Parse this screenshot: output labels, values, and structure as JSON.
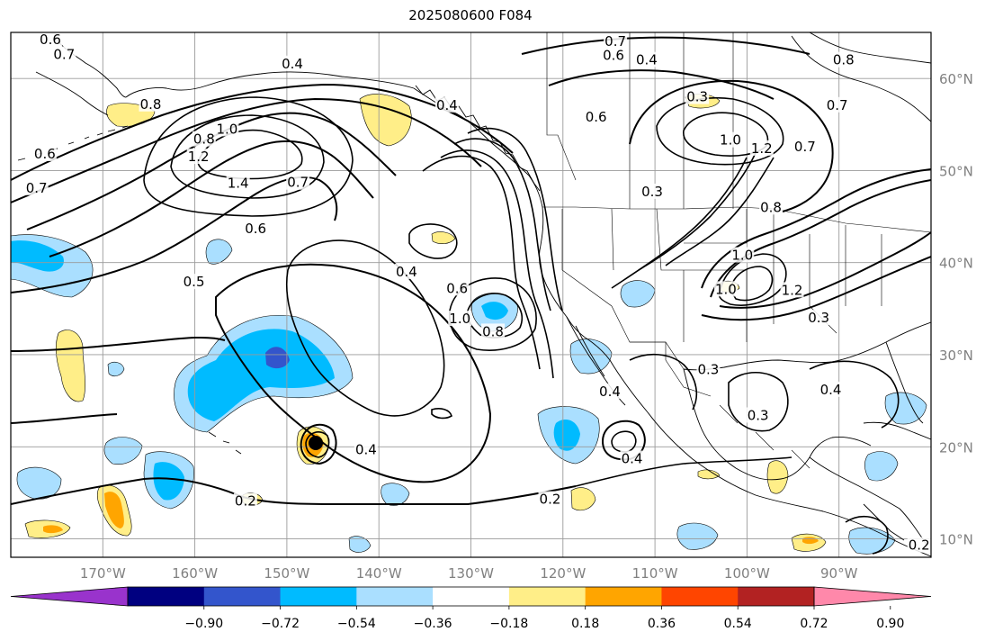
{
  "title": "2025080600 F084",
  "map": {
    "lon_range": [
      -180,
      -80
    ],
    "lat_range": [
      8,
      65
    ],
    "lon_ticks": [
      {
        "value": -170,
        "label": "170°W"
      },
      {
        "value": -160,
        "label": "160°W"
      },
      {
        "value": -150,
        "label": "150°W"
      },
      {
        "value": -140,
        "label": "140°W"
      },
      {
        "value": -130,
        "label": "130°W"
      },
      {
        "value": -120,
        "label": "120°W"
      },
      {
        "value": -110,
        "label": "110°W"
      },
      {
        "value": -100,
        "label": "100°W"
      },
      {
        "value": -90,
        "label": "90°W"
      }
    ],
    "lat_ticks": [
      {
        "value": 60,
        "label": "60°N"
      },
      {
        "value": 50,
        "label": "50°N"
      },
      {
        "value": 40,
        "label": "40°N"
      },
      {
        "value": 30,
        "label": "30°N"
      },
      {
        "value": 20,
        "label": "20°N"
      },
      {
        "value": 10,
        "label": "10°N"
      }
    ],
    "gridlines": true,
    "contour_labels": [
      {
        "text": "0.6",
        "lon": -175.7,
        "lat": 64.2
      },
      {
        "text": "0.7",
        "lon": -174.2,
        "lat": 62.6
      },
      {
        "text": "0.8",
        "lon": -164.8,
        "lat": 57.2
      },
      {
        "text": "0.8",
        "lon": -159.0,
        "lat": 53.4
      },
      {
        "text": "1.0",
        "lon": -156.5,
        "lat": 54.5
      },
      {
        "text": "1.2",
        "lon": -159.6,
        "lat": 51.5
      },
      {
        "text": "1.4",
        "lon": -155.3,
        "lat": 48.6
      },
      {
        "text": "0.7",
        "lon": -148.8,
        "lat": 48.7
      },
      {
        "text": "0.6",
        "lon": -153.4,
        "lat": 43.7
      },
      {
        "text": "0.5",
        "lon": -160.1,
        "lat": 37.9
      },
      {
        "text": "0.6",
        "lon": -176.3,
        "lat": 51.8
      },
      {
        "text": "0.7",
        "lon": -177.2,
        "lat": 48.1
      },
      {
        "text": "0.4",
        "lon": -149.4,
        "lat": 61.6
      },
      {
        "text": "0.4",
        "lon": -132.6,
        "lat": 57.1
      },
      {
        "text": "0.7",
        "lon": -114.3,
        "lat": 64.0
      },
      {
        "text": "0.6",
        "lon": -114.5,
        "lat": 62.5
      },
      {
        "text": "0.4",
        "lon": -110.9,
        "lat": 62.0
      },
      {
        "text": "0.8",
        "lon": -89.5,
        "lat": 62.0
      },
      {
        "text": "0.6",
        "lon": -116.4,
        "lat": 55.8
      },
      {
        "text": "0.3",
        "lon": -105.4,
        "lat": 58.0
      },
      {
        "text": "1.0",
        "lon": -101.8,
        "lat": 53.3
      },
      {
        "text": "1.2",
        "lon": -98.4,
        "lat": 52.4
      },
      {
        "text": "0.7",
        "lon": -93.7,
        "lat": 52.6
      },
      {
        "text": "0.7",
        "lon": -90.2,
        "lat": 57.1
      },
      {
        "text": "0.3",
        "lon": -110.3,
        "lat": 47.7
      },
      {
        "text": "0.8",
        "lon": -97.4,
        "lat": 46.0
      },
      {
        "text": "1.0",
        "lon": -100.5,
        "lat": 40.8
      },
      {
        "text": "1.0",
        "lon": -102.3,
        "lat": 37.1
      },
      {
        "text": "1.2",
        "lon": -95.1,
        "lat": 37.0
      },
      {
        "text": "0.3",
        "lon": -92.2,
        "lat": 34.0
      },
      {
        "text": "0.4",
        "lon": -137.0,
        "lat": 39.0
      },
      {
        "text": "0.6",
        "lon": -131.5,
        "lat": 37.2
      },
      {
        "text": "1.0",
        "lon": -131.2,
        "lat": 33.9
      },
      {
        "text": "0.8",
        "lon": -127.6,
        "lat": 32.5
      },
      {
        "text": "0.3",
        "lon": -104.2,
        "lat": 28.4
      },
      {
        "text": "0.3",
        "lon": -98.8,
        "lat": 23.4
      },
      {
        "text": "0.4",
        "lon": -114.9,
        "lat": 26.0
      },
      {
        "text": "0.4",
        "lon": -90.9,
        "lat": 26.2
      },
      {
        "text": "0.4",
        "lon": -141.4,
        "lat": 19.7
      },
      {
        "text": "0.4",
        "lon": -112.5,
        "lat": 18.7
      },
      {
        "text": "0.2",
        "lon": -154.5,
        "lat": 14.1
      },
      {
        "text": "0.2",
        "lon": -121.4,
        "lat": 14.3
      },
      {
        "text": "0.2",
        "lon": -81.3,
        "lat": 9.3
      }
    ]
  },
  "colorbar": {
    "colors": [
      "#9933cc",
      "#000080",
      "#3355cc",
      "#00bbff",
      "#aadfff",
      "#ffffff",
      "#ffee88",
      "#ffa500",
      "#ff4500",
      "#b22222",
      "#ff88aa"
    ],
    "tick_labels": [
      "−0.90",
      "−0.72",
      "−0.54",
      "−0.36",
      "−0.18",
      "0.18",
      "0.36",
      "0.54",
      "0.72",
      "0.90"
    ]
  }
}
